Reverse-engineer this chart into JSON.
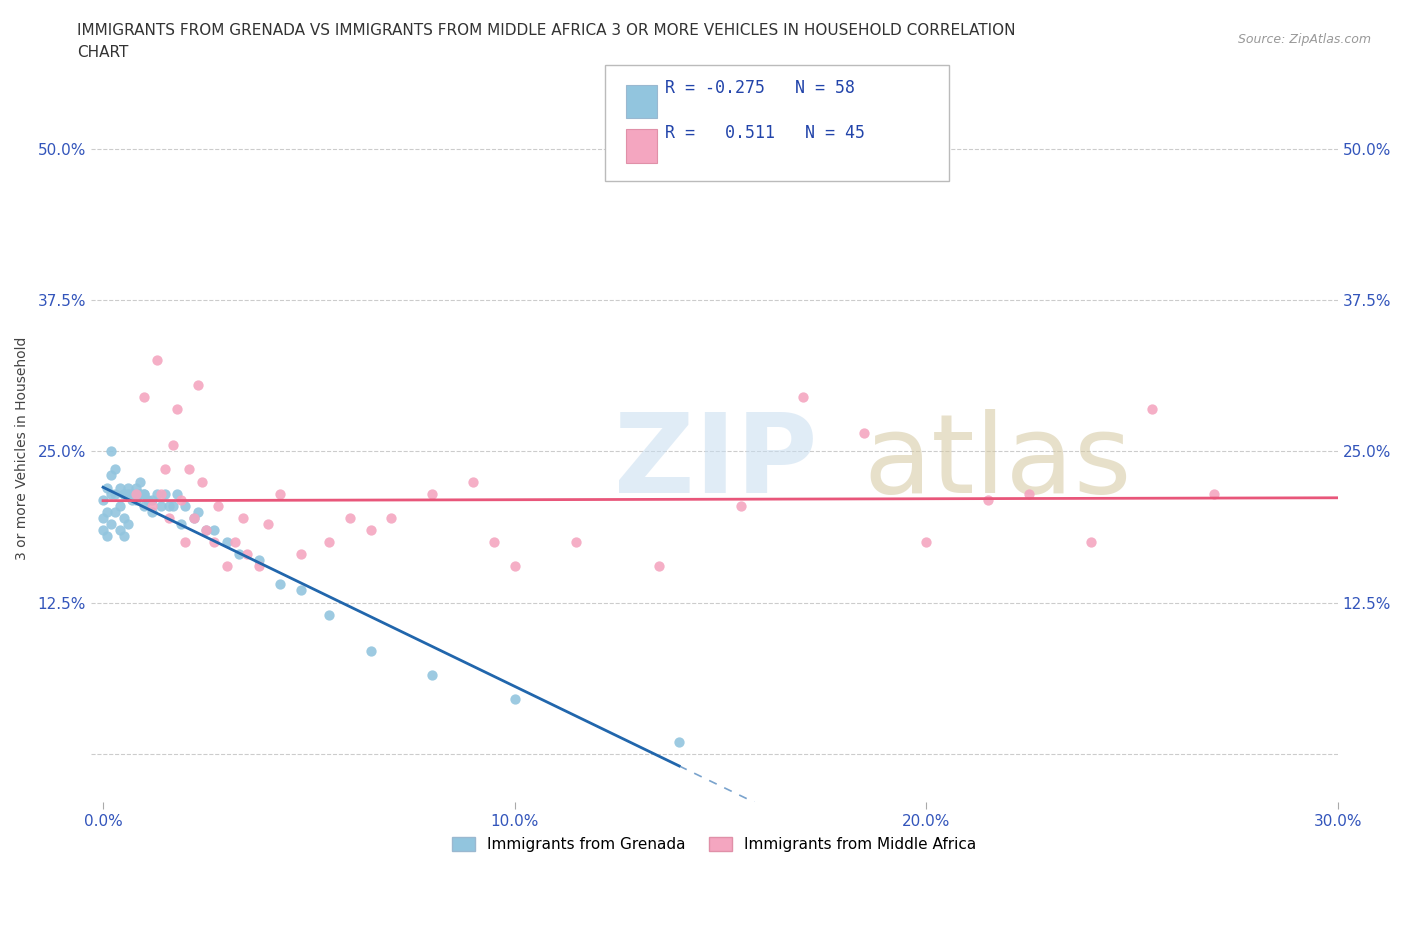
{
  "title_line1": "IMMIGRANTS FROM GRENADA VS IMMIGRANTS FROM MIDDLE AFRICA 3 OR MORE VEHICLES IN HOUSEHOLD CORRELATION",
  "title_line2": "CHART",
  "source_text": "Source: ZipAtlas.com",
  "ylabel": "3 or more Vehicles in Household",
  "xlim": [
    -0.003,
    0.3
  ],
  "ylim": [
    -0.04,
    0.545
  ],
  "xtick_vals": [
    0.0,
    0.1,
    0.2,
    0.3
  ],
  "xtick_labels": [
    "0.0%",
    "10.0%",
    "20.0%",
    "30.0%"
  ],
  "ytick_vals": [
    0.0,
    0.125,
    0.25,
    0.375,
    0.5
  ],
  "ytick_labels": [
    "",
    "12.5%",
    "25.0%",
    "37.5%",
    "50.0%"
  ],
  "color_blue": "#92c5de",
  "color_pink": "#f4a6c0",
  "color_blue_line": "#2166ac",
  "color_pink_line": "#e8567a",
  "legend_label1": "Immigrants from Grenada",
  "legend_label2": "Immigrants from Middle Africa",
  "grenada_x": [
    0.0,
    0.0,
    0.0,
    0.001,
    0.001,
    0.001,
    0.002,
    0.002,
    0.002,
    0.002,
    0.003,
    0.003,
    0.003,
    0.004,
    0.004,
    0.004,
    0.005,
    0.005,
    0.005,
    0.005,
    0.006,
    0.006,
    0.006,
    0.007,
    0.007,
    0.008,
    0.008,
    0.009,
    0.009,
    0.009,
    0.01,
    0.01,
    0.01,
    0.011,
    0.012,
    0.012,
    0.013,
    0.014,
    0.015,
    0.016,
    0.017,
    0.018,
    0.019,
    0.02,
    0.022,
    0.023,
    0.025,
    0.027,
    0.03,
    0.033,
    0.038,
    0.043,
    0.048,
    0.055,
    0.065,
    0.08,
    0.1,
    0.14
  ],
  "grenada_y": [
    0.195,
    0.21,
    0.185,
    0.22,
    0.2,
    0.18,
    0.25,
    0.23,
    0.215,
    0.19,
    0.215,
    0.235,
    0.2,
    0.22,
    0.205,
    0.185,
    0.215,
    0.195,
    0.215,
    0.18,
    0.215,
    0.22,
    0.19,
    0.21,
    0.215,
    0.22,
    0.21,
    0.215,
    0.215,
    0.225,
    0.215,
    0.205,
    0.215,
    0.21,
    0.21,
    0.2,
    0.215,
    0.205,
    0.215,
    0.205,
    0.205,
    0.215,
    0.19,
    0.205,
    0.195,
    0.2,
    0.185,
    0.185,
    0.175,
    0.165,
    0.16,
    0.14,
    0.135,
    0.115,
    0.085,
    0.065,
    0.045,
    0.01
  ],
  "middle_africa_x": [
    0.008,
    0.01,
    0.012,
    0.013,
    0.014,
    0.015,
    0.016,
    0.017,
    0.018,
    0.019,
    0.02,
    0.021,
    0.022,
    0.023,
    0.024,
    0.025,
    0.027,
    0.028,
    0.03,
    0.032,
    0.034,
    0.035,
    0.038,
    0.04,
    0.043,
    0.048,
    0.055,
    0.06,
    0.065,
    0.07,
    0.08,
    0.09,
    0.095,
    0.1,
    0.115,
    0.135,
    0.155,
    0.17,
    0.185,
    0.2,
    0.215,
    0.225,
    0.24,
    0.255,
    0.27
  ],
  "middle_africa_y": [
    0.215,
    0.295,
    0.205,
    0.325,
    0.215,
    0.235,
    0.195,
    0.255,
    0.285,
    0.21,
    0.175,
    0.235,
    0.195,
    0.305,
    0.225,
    0.185,
    0.175,
    0.205,
    0.155,
    0.175,
    0.195,
    0.165,
    0.155,
    0.19,
    0.215,
    0.165,
    0.175,
    0.195,
    0.185,
    0.195,
    0.215,
    0.225,
    0.175,
    0.155,
    0.175,
    0.155,
    0.205,
    0.295,
    0.265,
    0.175,
    0.21,
    0.215,
    0.175,
    0.285,
    0.215
  ],
  "title_fontsize": 11,
  "tick_fontsize": 11,
  "ylabel_fontsize": 10
}
